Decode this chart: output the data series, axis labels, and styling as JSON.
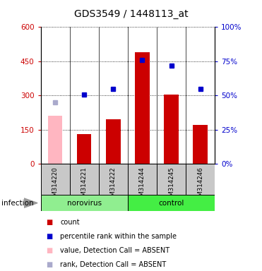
{
  "title": "GDS3549 / 1448113_at",
  "samples": [
    "GSM314220",
    "GSM314221",
    "GSM314222",
    "GSM314244",
    "GSM314245",
    "GSM314246"
  ],
  "count_values": [
    null,
    130,
    195,
    490,
    305,
    170
  ],
  "count_absent": [
    210,
    null,
    null,
    null,
    null,
    null
  ],
  "percentile_left_units": [
    270,
    305,
    330,
    455,
    430,
    330
  ],
  "percentile_absent_flags": [
    true,
    false,
    false,
    false,
    false,
    false
  ],
  "ylim_left": [
    0,
    600
  ],
  "ylim_right": [
    0,
    100
  ],
  "yticks_left": [
    0,
    150,
    300,
    450,
    600
  ],
  "yticks_right": [
    0,
    25,
    50,
    75,
    100
  ],
  "ytick_labels_left": [
    "0",
    "150",
    "300",
    "450",
    "600"
  ],
  "ytick_labels_right": [
    "0%",
    "25%",
    "50%",
    "75%",
    "100%"
  ],
  "left_axis_color": "#CC0000",
  "right_axis_color": "#0000CC",
  "bar_color_present": "#CC0000",
  "bar_color_absent": "#FFB6C1",
  "dot_color_present": "#0000CC",
  "dot_color_absent": "#AAAACC",
  "title_fontsize": 10,
  "norovirus_color": "#90EE90",
  "control_color": "#44EE44",
  "sample_bg_color": "#C8C8C8",
  "legend_items": [
    {
      "label": "count",
      "color": "#CC0000"
    },
    {
      "label": "percentile rank within the sample",
      "color": "#0000CC"
    },
    {
      "label": "value, Detection Call = ABSENT",
      "color": "#FFB6C1"
    },
    {
      "label": "rank, Detection Call = ABSENT",
      "color": "#AAAACC"
    }
  ]
}
